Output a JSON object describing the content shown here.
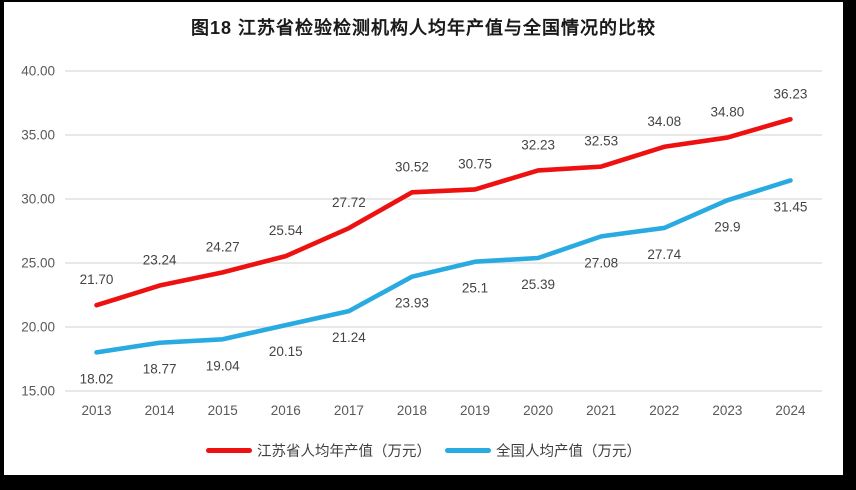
{
  "title": "图18  江苏省检验检测机构人均年产值与全国情况的比较",
  "chart_data": {
    "type": "line",
    "categories": [
      "2013",
      "2014",
      "2015",
      "2016",
      "2017",
      "2018",
      "2019",
      "2020",
      "2021",
      "2022",
      "2023",
      "2024"
    ],
    "series": [
      {
        "name": "江苏省人均年产值（万元）",
        "color": "#ED1111",
        "values": [
          21.7,
          23.24,
          24.27,
          25.54,
          27.72,
          30.52,
          30.75,
          32.23,
          32.53,
          34.08,
          34.8,
          36.23
        ],
        "labels": [
          "21.70",
          "23.24",
          "24.27",
          "25.54",
          "27.72",
          "30.52",
          "30.75",
          "32.23",
          "32.53",
          "34.08",
          "34.80",
          "36.23"
        ],
        "label_position": "above"
      },
      {
        "name": "全国人均产值（万元）",
        "color": "#29ABE2",
        "values": [
          18.02,
          18.77,
          19.04,
          20.15,
          21.24,
          23.93,
          25.1,
          25.39,
          27.08,
          27.74,
          29.9,
          31.45
        ],
        "labels": [
          "18.02",
          "18.77",
          "19.04",
          "20.15",
          "21.24",
          "23.93",
          "25.1",
          "25.39",
          "27.08",
          "27.74",
          "29.9",
          "31.45"
        ],
        "label_position": "below"
      }
    ],
    "y_axis": {
      "min": 15,
      "max": 40,
      "tick_step": 5,
      "tick_labels": [
        "15.00",
        "20.00",
        "25.00",
        "30.00",
        "35.00",
        "40.00"
      ]
    },
    "x_axis": {
      "label": ""
    },
    "grid": true,
    "legend_position": "bottom",
    "grid_color": "#D9D9D9",
    "axis_text_color": "#595959",
    "data_label_color": "#444444"
  }
}
